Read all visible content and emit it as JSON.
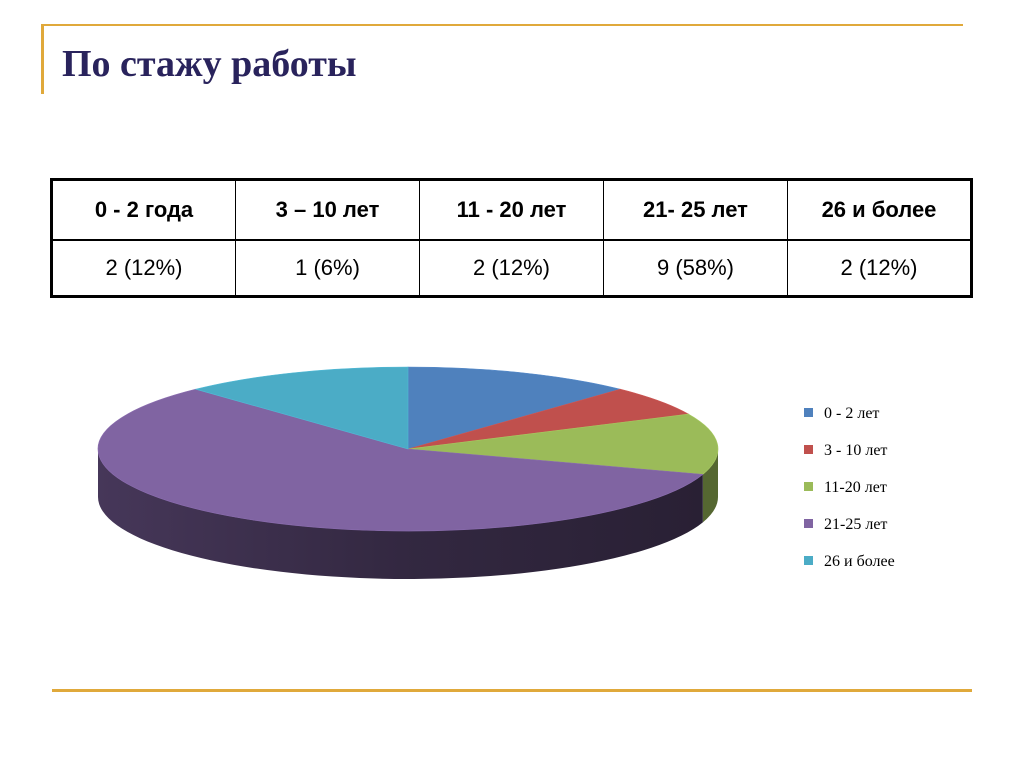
{
  "slide": {
    "title": "По стажу работы"
  },
  "table": {
    "headers": [
      "0 - 2 года",
      "3 – 10 лет",
      "11 - 20 лет",
      "21- 25 лет",
      "26 и более"
    ],
    "values": [
      "2 (12%)",
      "1 (6%)",
      "2 (12%)",
      "9 (58%)",
      "2 (12%)"
    ]
  },
  "chart_data": {
    "type": "pie",
    "categories": [
      "0 - 2 лет",
      "3 - 10 лет",
      "11-20 лет",
      "21-25 лет",
      "26 и более"
    ],
    "values": [
      12,
      6,
      12,
      58,
      12
    ],
    "colors": [
      "#4F81BD",
      "#C0504D",
      "#9BBB59",
      "#8064A2",
      "#4BACC6"
    ],
    "style": "3d",
    "legend": "right"
  }
}
